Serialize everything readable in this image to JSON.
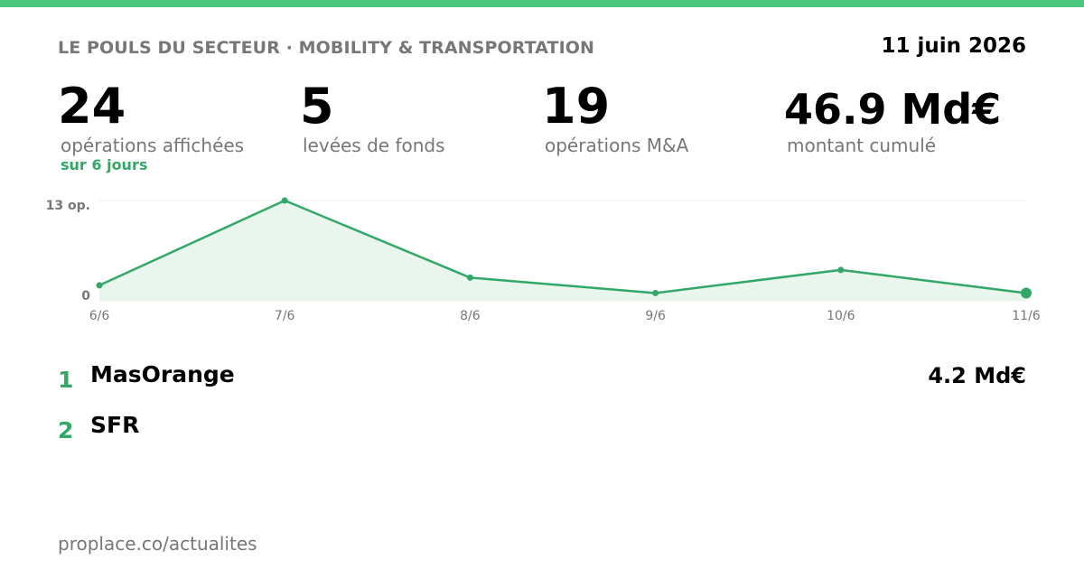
{
  "header": {
    "title": "LE POULS DU SECTEUR · MOBILITY & TRANSPORTATION",
    "date": "11 juin 2026"
  },
  "stats": [
    {
      "value": "24",
      "label": "opérations affichées",
      "sub": "sur 6 jours"
    },
    {
      "value": "5",
      "label": "levées de fonds"
    },
    {
      "value": "19",
      "label": "opérations M&A"
    },
    {
      "value": "46.9 Md€",
      "label": "montant cumulé"
    }
  ],
  "chart_data": {
    "type": "area",
    "categories": [
      "6/6",
      "7/6",
      "8/6",
      "9/6",
      "10/6",
      "11/6"
    ],
    "values": [
      2,
      13,
      3,
      1,
      4,
      1
    ],
    "ylim": [
      0,
      13
    ],
    "y_tick_labels": [
      "13 op.",
      "0"
    ],
    "colors": {
      "line": "#33a866",
      "fill": "#e8f6ee",
      "grid": "#eeeeee"
    }
  },
  "ranking": [
    {
      "rank": "1",
      "name": "MasOrange",
      "amount": "4.2 Md€"
    },
    {
      "rank": "2",
      "name": "SFR"
    }
  ],
  "footer": {
    "url": "proplace.co/actualites"
  }
}
